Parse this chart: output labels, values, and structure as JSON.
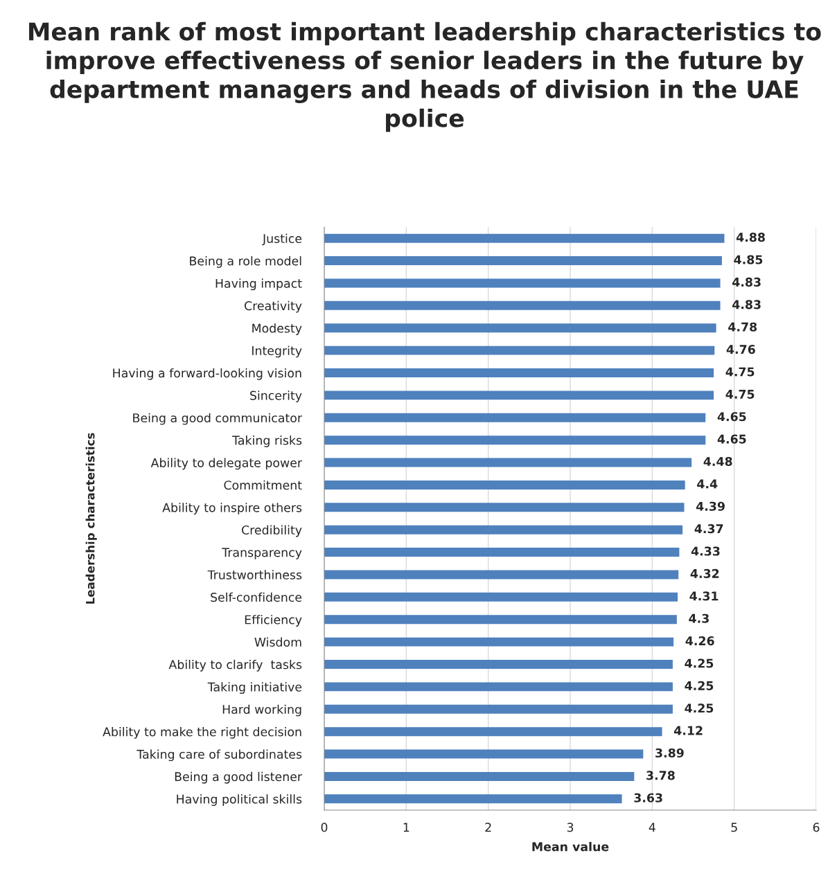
{
  "chart_data": {
    "type": "bar",
    "orientation": "horizontal",
    "title": "Mean rank of most important leadership characteristics to improve effectiveness of senior leaders in the future by department managers and heads of division in the UAE police",
    "xlabel": "Mean value",
    "ylabel": "Leadership characteristics",
    "categories": [
      "Justice",
      "Being a role model",
      "Having impact",
      "Creativity",
      "Modesty",
      "Integrity",
      "Having a forward-looking vision",
      "Sincerity",
      "Being a good communicator",
      "Taking risks",
      "Ability to delegate power",
      "Commitment",
      "Ability to inspire others",
      "Credibility",
      "Transparency",
      "Trustworthiness",
      "Self-confidence",
      "Efficiency",
      "Wisdom",
      "Ability to clarify  tasks",
      "Taking initiative",
      "Hard working",
      "Ability to make the right decision",
      "Taking care of subordinates",
      "Being a good listener",
      "Having political skills"
    ],
    "values": [
      4.88,
      4.85,
      4.83,
      4.83,
      4.78,
      4.76,
      4.75,
      4.75,
      4.65,
      4.65,
      4.48,
      4.4,
      4.39,
      4.37,
      4.33,
      4.32,
      4.31,
      4.3,
      4.26,
      4.25,
      4.25,
      4.25,
      4.12,
      3.89,
      3.78,
      3.63
    ],
    "color": "#4f81bd",
    "xlim": [
      0,
      6
    ],
    "xticks": [
      0,
      1,
      2,
      3,
      4,
      5,
      6
    ],
    "grid": "x",
    "data_labels": true
  }
}
